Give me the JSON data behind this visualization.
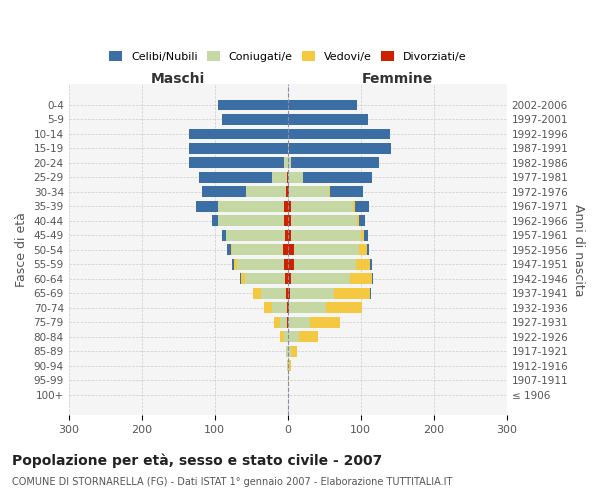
{
  "age_groups": [
    "100+",
    "95-99",
    "90-94",
    "85-89",
    "80-84",
    "75-79",
    "70-74",
    "65-69",
    "60-64",
    "55-59",
    "50-54",
    "45-49",
    "40-44",
    "35-39",
    "30-34",
    "25-29",
    "20-24",
    "15-19",
    "10-14",
    "5-9",
    "0-4"
  ],
  "birth_years": [
    "≤ 1906",
    "1907-1911",
    "1912-1916",
    "1917-1921",
    "1922-1926",
    "1927-1931",
    "1932-1936",
    "1937-1941",
    "1942-1946",
    "1947-1951",
    "1952-1956",
    "1957-1961",
    "1962-1966",
    "1967-1971",
    "1972-1976",
    "1977-1981",
    "1982-1986",
    "1987-1991",
    "1992-1996",
    "1997-2001",
    "2002-2006"
  ],
  "males": {
    "celibi": [
      0,
      0,
      0,
      0,
      0,
      0,
      0,
      0,
      2,
      3,
      5,
      5,
      8,
      30,
      60,
      100,
      130,
      135,
      135,
      90,
      95
    ],
    "coniugati": [
      0,
      0,
      1,
      2,
      5,
      10,
      20,
      35,
      55,
      65,
      70,
      80,
      90,
      90,
      55,
      20,
      5,
      0,
      0,
      0,
      0
    ],
    "vedovi": [
      0,
      0,
      0,
      1,
      5,
      8,
      12,
      10,
      5,
      3,
      2,
      1,
      1,
      1,
      0,
      0,
      0,
      0,
      0,
      0,
      0
    ],
    "divorziati": [
      0,
      0,
      0,
      0,
      0,
      1,
      1,
      2,
      4,
      5,
      6,
      4,
      5,
      5,
      2,
      1,
      0,
      0,
      0,
      0,
      0
    ]
  },
  "females": {
    "nubili": [
      0,
      0,
      0,
      0,
      0,
      0,
      0,
      1,
      2,
      3,
      4,
      5,
      8,
      20,
      45,
      95,
      120,
      140,
      140,
      110,
      95
    ],
    "coniugate": [
      0,
      1,
      2,
      5,
      15,
      30,
      50,
      60,
      80,
      85,
      90,
      95,
      90,
      85,
      55,
      20,
      5,
      2,
      0,
      0,
      0
    ],
    "vedove": [
      0,
      1,
      3,
      8,
      25,
      40,
      50,
      50,
      30,
      20,
      10,
      5,
      3,
      2,
      1,
      0,
      0,
      0,
      0,
      0,
      0
    ],
    "divorziate": [
      0,
      0,
      0,
      0,
      1,
      1,
      2,
      3,
      5,
      8,
      8,
      5,
      5,
      5,
      2,
      1,
      0,
      0,
      0,
      0,
      0
    ]
  },
  "colors": {
    "celibi_nubili": "#3a6ea5",
    "coniugati": "#c5d8a4",
    "vedovi": "#f5c842",
    "divorziati": "#cc2200"
  },
  "title": "Popolazione per età, sesso e stato civile - 2007",
  "subtitle": "COMUNE DI STORNARELLA (FG) - Dati ISTAT 1° gennaio 2007 - Elaborazione TUTTITALIA.IT",
  "xlabel_left": "Maschi",
  "xlabel_right": "Femmine",
  "ylabel_left": "Fasce di età",
  "ylabel_right": "Anni di nascita",
  "xlim": 300,
  "bg_color": "#ffffff",
  "grid_color": "#cccccc"
}
